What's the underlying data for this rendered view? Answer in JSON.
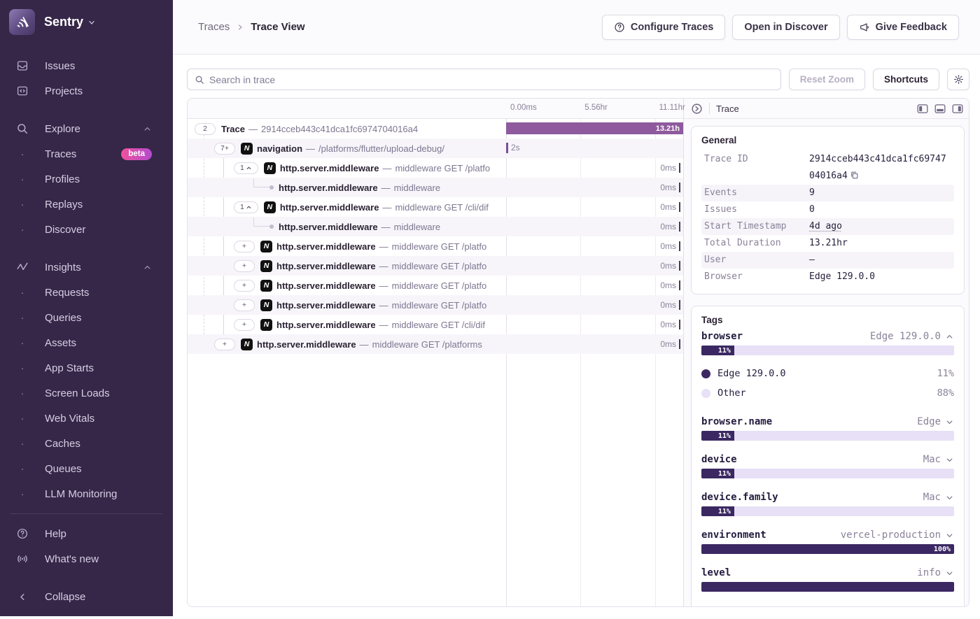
{
  "sidebar": {
    "brand": "Sentry",
    "top_items": [
      {
        "label": "Issues",
        "icon": "issues-icon"
      },
      {
        "label": "Projects",
        "icon": "projects-icon"
      }
    ],
    "sections": [
      {
        "label": "Explore",
        "icon": "search-icon",
        "chevron": "up",
        "children": [
          {
            "label": "Traces",
            "badge": "beta"
          },
          {
            "label": "Profiles"
          },
          {
            "label": "Replays"
          },
          {
            "label": "Discover"
          }
        ]
      },
      {
        "label": "Insights",
        "icon": "insights-icon",
        "chevron": "up",
        "children": [
          {
            "label": "Requests"
          },
          {
            "label": "Queries"
          },
          {
            "label": "Assets"
          },
          {
            "label": "App Starts"
          },
          {
            "label": "Screen Loads"
          },
          {
            "label": "Web Vitals"
          },
          {
            "label": "Caches"
          },
          {
            "label": "Queues"
          },
          {
            "label": "LLM Monitoring"
          }
        ]
      }
    ],
    "footer_items": [
      {
        "label": "Help",
        "icon": "help-icon"
      },
      {
        "label": "What's new",
        "icon": "broadcast-icon"
      }
    ],
    "collapse_label": "Collapse"
  },
  "header": {
    "breadcrumb": {
      "root": "Traces",
      "current": "Trace View"
    },
    "buttons": [
      {
        "label": "Configure Traces",
        "icon": "help-circle-icon"
      },
      {
        "label": "Open in Discover",
        "icon": null
      },
      {
        "label": "Give Feedback",
        "icon": "megaphone-icon"
      }
    ]
  },
  "toolbar": {
    "search_placeholder": "Search in trace",
    "reset_zoom_label": "Reset Zoom",
    "shortcuts_label": "Shortcuts"
  },
  "waterfall": {
    "ticks": [
      {
        "label": "0.00ms",
        "pos_pct": 0
      },
      {
        "label": "5.56hr",
        "pos_pct": 42
      },
      {
        "label": "11.11hr",
        "pos_pct": 84
      }
    ],
    "rows": [
      {
        "pill": "2",
        "chev": null,
        "icon": null,
        "dot": false,
        "op": "Trace",
        "sep": "—",
        "desc": "2914cceb443c41dca1fc6974704016a4",
        "depth": 0,
        "bar": "full",
        "bar_label": "13.21h",
        "stripe": false
      },
      {
        "pill": "7+",
        "chev": null,
        "icon": "nextjs",
        "dot": false,
        "op": "navigation",
        "sep": "—",
        "desc": "/platforms/flutter/upload-debug/",
        "depth": 1,
        "bar": "start",
        "duration": "2s",
        "stripe": true
      },
      {
        "pill": "1",
        "chev": "up",
        "icon": "nextjs",
        "dot": false,
        "op": "http.server.middleware",
        "sep": "—",
        "desc": "middleware GET /platfo",
        "depth": 2,
        "bar": "end",
        "duration": "0ms",
        "stripe": false
      },
      {
        "pill": null,
        "chev": null,
        "icon": null,
        "dot": true,
        "op": "http.server.middleware",
        "sep": "—",
        "desc": "middleware",
        "depth": 3,
        "bar": "end",
        "duration": "0ms",
        "stripe": true
      },
      {
        "pill": "1",
        "chev": "up",
        "icon": "nextjs",
        "dot": false,
        "op": "http.server.middleware",
        "sep": "—",
        "desc": "middleware GET /cli/dif",
        "depth": 2,
        "bar": "end",
        "duration": "0ms",
        "stripe": false
      },
      {
        "pill": null,
        "chev": null,
        "icon": null,
        "dot": true,
        "op": "http.server.middleware",
        "sep": "—",
        "desc": "middleware",
        "depth": 3,
        "bar": "end",
        "duration": "0ms",
        "stripe": true
      },
      {
        "pill": "+",
        "chev": null,
        "icon": "nextjs",
        "dot": false,
        "op": "http.server.middleware",
        "sep": "—",
        "desc": "middleware GET /platfo",
        "depth": 2,
        "bar": "end",
        "duration": "0ms",
        "stripe": false
      },
      {
        "pill": "+",
        "chev": null,
        "icon": "nextjs",
        "dot": false,
        "op": "http.server.middleware",
        "sep": "—",
        "desc": "middleware GET /platfo",
        "depth": 2,
        "bar": "end",
        "duration": "0ms",
        "stripe": true
      },
      {
        "pill": "+",
        "chev": null,
        "icon": "nextjs",
        "dot": false,
        "op": "http.server.middleware",
        "sep": "—",
        "desc": "middleware GET /platfo",
        "depth": 2,
        "bar": "end",
        "duration": "0ms",
        "stripe": false
      },
      {
        "pill": "+",
        "chev": null,
        "icon": "nextjs",
        "dot": false,
        "op": "http.server.middleware",
        "sep": "—",
        "desc": "middleware GET /platfo",
        "depth": 2,
        "bar": "end",
        "duration": "0ms",
        "stripe": true
      },
      {
        "pill": "+",
        "chev": null,
        "icon": "nextjs",
        "dot": false,
        "op": "http.server.middleware",
        "sep": "—",
        "desc": "middleware GET /cli/dif",
        "depth": 2,
        "bar": "end",
        "duration": "0ms",
        "stripe": false
      },
      {
        "pill": "+",
        "chev": null,
        "icon": "nextjs",
        "dot": false,
        "op": "http.server.middleware",
        "sep": "—",
        "desc": "middleware GET /platforms",
        "depth": 1,
        "bar": "end",
        "duration": "0ms",
        "stripe": true
      }
    ]
  },
  "details": {
    "tab_label": "Trace",
    "general": {
      "title": "General",
      "rows": [
        {
          "key": "Trace ID",
          "value": "2914cceb443c41dca1fc6974704016a4",
          "copy": true,
          "stripe": false
        },
        {
          "key": "Events",
          "value": "9",
          "stripe": true
        },
        {
          "key": "Issues",
          "value": "0",
          "stripe": false
        },
        {
          "key": "Start Timestamp",
          "value": "4d ago",
          "dotted": true,
          "stripe": true
        },
        {
          "key": "Total Duration",
          "value": "13.21hr",
          "stripe": false
        },
        {
          "key": "User",
          "value": "—",
          "stripe": true
        },
        {
          "key": "Browser",
          "value": "Edge 129.0.0",
          "stripe": false
        }
      ]
    },
    "tags": {
      "title": "Tags",
      "items": [
        {
          "key": "browser",
          "value": "Edge 129.0.0",
          "chevron": "up",
          "pct": 11,
          "pct_label": "11%",
          "legend": [
            {
              "label": "Edge 129.0.0",
              "pct": "11%",
              "color": "dark"
            },
            {
              "label": "Other",
              "pct": "88%",
              "color": "light"
            }
          ]
        },
        {
          "key": "browser.name",
          "value": "Edge",
          "chevron": "down",
          "pct": 11,
          "pct_label": "11%"
        },
        {
          "key": "device",
          "value": "Mac",
          "chevron": "down",
          "pct": 11,
          "pct_label": "11%"
        },
        {
          "key": "device.family",
          "value": "Mac",
          "chevron": "down",
          "pct": 11,
          "pct_label": "11%"
        },
        {
          "key": "environment",
          "value": "vercel-production",
          "chevron": "down",
          "pct": 100,
          "pct_label": "100%"
        },
        {
          "key": "level",
          "value": "info",
          "chevron": "down",
          "pct": 100,
          "pct_label": ""
        }
      ]
    }
  },
  "colors": {
    "sidebar_bg": "#362749",
    "trace_bar": "#8e5a9d",
    "tag_fill_dark": "#3b2862",
    "tag_fill_light": "#e7e0f6",
    "beta_gradient_start": "#f0529c",
    "beta_gradient_end": "#b44ad0"
  }
}
